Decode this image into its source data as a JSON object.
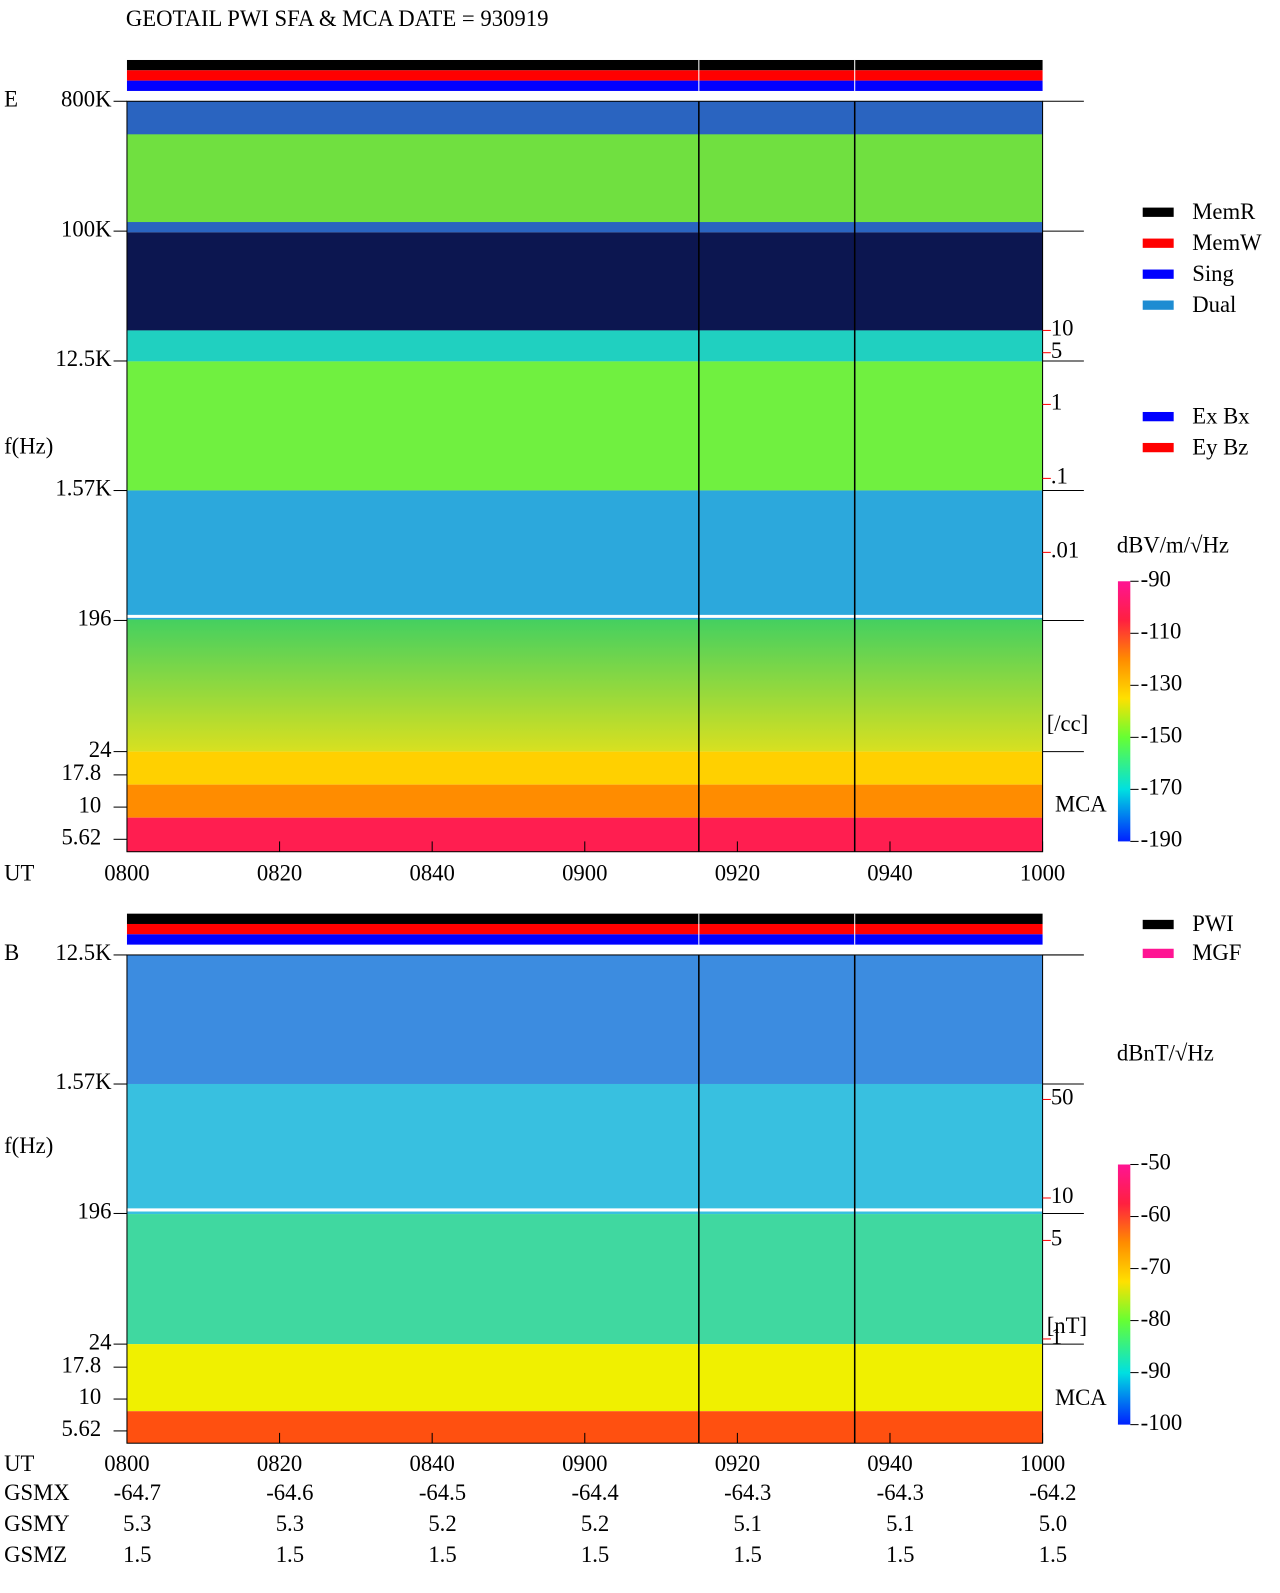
{
  "title": "GEOTAIL  PWI SFA & MCA   DATE = 930919",
  "chart_data": [
    {
      "type": "spectrogram",
      "panel_label": "E",
      "y_label": "f(Hz)",
      "x_label": "UT",
      "log_y": true,
      "ylim": [
        24,
        800000
      ],
      "yticks": [
        {
          "value": 800000,
          "label": "800K"
        },
        {
          "value": 100000,
          "label": "100K"
        },
        {
          "value": 12500,
          "label": "12.5K"
        },
        {
          "value": 1570,
          "label": "1.57K"
        },
        196,
        24
      ],
      "mca_label": "MCA",
      "mca_ylim": [
        4.5,
        27
      ],
      "mca_yticks": [
        17.8,
        10,
        5.62
      ],
      "categories": [
        "0800",
        "0820",
        "0840",
        "0900",
        "0920",
        "0940",
        "1000"
      ],
      "legend": [
        {
          "name": "MemR",
          "color": "#000000"
        },
        {
          "name": "MemW",
          "color": "#ff0000"
        },
        {
          "name": "Sing",
          "color": "#0000ff"
        },
        {
          "name": "Dual",
          "color": "#1e8cd2"
        }
      ],
      "component_legend": [
        {
          "name": "Ex Bx",
          "color": "#0000ff"
        },
        {
          "name": "Ey Bz",
          "color": "#ff0000"
        }
      ],
      "density_axis": {
        "ylim": [
          0.01,
          10
        ],
        "yticks": [
          10,
          5,
          1,
          {
            "value": 0.1,
            "label": ".1"
          },
          {
            "value": 0.01,
            "label": ".01"
          }
        ],
        "unit": "[/cc]",
        "color": "#ff0000"
      },
      "colorbar": {
        "label": "dBV/m/√Hz",
        "lim": [
          -190,
          -90
        ],
        "ticks": [
          -90,
          -110,
          -130,
          -150,
          -170,
          -190
        ]
      }
    },
    {
      "type": "spectrogram",
      "panel_label": "B",
      "y_label": "f(Hz)",
      "x_label": "UT",
      "log_y": true,
      "ylim": [
        24,
        12500
      ],
      "yticks": [
        {
          "value": 12500,
          "label": "12.5K"
        },
        {
          "value": 1570,
          "label": "1.57K"
        },
        196,
        24
      ],
      "mca_label": "MCA",
      "mca_ylim": [
        4.5,
        27
      ],
      "mca_yticks": [
        17.8,
        10,
        5.62
      ],
      "categories": [
        "0800",
        "0820",
        "0840",
        "0900",
        "0920",
        "0940",
        "1000"
      ],
      "legend": [
        {
          "name": "PWI",
          "color": "#000000"
        },
        {
          "name": "MGF",
          "color": "#ff1493"
        }
      ],
      "density_axis": {
        "ylim": [
          1,
          50
        ],
        "yticks": [
          50,
          10,
          5,
          1
        ],
        "unit": "[nT]",
        "color": "#ff0000"
      },
      "colorbar": {
        "label": "dBnT/√Hz",
        "lim": [
          -100,
          -50
        ],
        "ticks": [
          -50,
          -60,
          -70,
          -80,
          -90,
          -100
        ]
      }
    }
  ],
  "orbit": {
    "rows": [
      {
        "label": "GSMX",
        "values": [
          "-64.7",
          "-64.6",
          "-64.5",
          "-64.4",
          "-64.3",
          "-64.3",
          "-64.2"
        ]
      },
      {
        "label": "GSMY",
        "values": [
          "5.3",
          "5.3",
          "5.2",
          "5.2",
          "5.1",
          "5.1",
          "5.0"
        ]
      },
      {
        "label": "GSMZ",
        "values": [
          "1.5",
          "1.5",
          "1.5",
          "1.5",
          "1.5",
          "1.5",
          "1.5"
        ]
      }
    ]
  }
}
